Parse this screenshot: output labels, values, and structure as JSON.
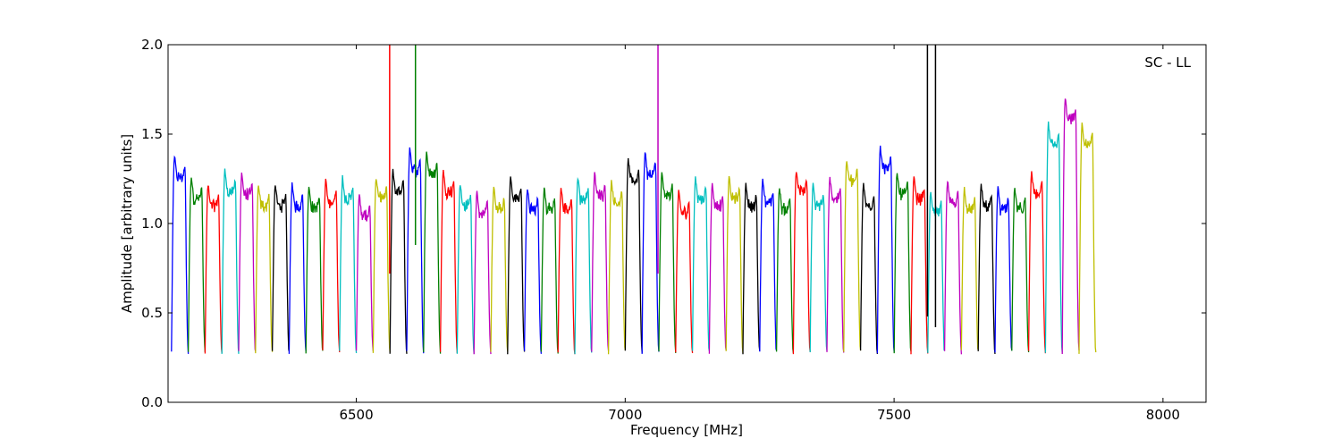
{
  "chart_data": {
    "type": "line",
    "annotation": "SC - LL",
    "xlabel": "Frequency [MHz]",
    "ylabel": "Amplitude [arbitrary units]",
    "xlim": [
      6150,
      8080
    ],
    "ylim": [
      0.0,
      2.0
    ],
    "x_ticks": [
      6500,
      7000,
      7500,
      8000
    ],
    "x_tick_labels": [
      "6500",
      "7000",
      "7500",
      "8000"
    ],
    "y_ticks": [
      0.0,
      0.5,
      1.0,
      1.5,
      2.0
    ],
    "y_tick_labels": [
      "0.0",
      "0.5",
      "1.0",
      "1.5",
      "2.0"
    ],
    "grid": false,
    "legend": "none",
    "color_cycle": [
      "#0000ff",
      "#008000",
      "#ff0000",
      "#00bfbf",
      "#bf00bf",
      "#bfbf00",
      "#000000"
    ],
    "channel_width_mhz": 31.25,
    "first_channel_center_mhz": 6172,
    "channel_peaks": [
      1.38,
      1.26,
      1.22,
      1.3,
      1.28,
      1.22,
      1.22,
      1.22,
      1.21,
      1.24,
      1.26,
      1.16,
      1.26,
      1.3,
      1.42,
      1.4,
      1.3,
      1.22,
      1.18,
      1.2,
      1.26,
      1.2,
      1.2,
      1.2,
      1.26,
      1.28,
      1.24,
      1.36,
      1.4,
      1.28,
      1.18,
      1.26,
      1.22,
      1.26,
      1.22,
      1.24,
      1.2,
      1.3,
      1.22,
      1.26,
      1.36,
      1.22,
      1.43,
      1.29,
      1.26,
      1.18,
      1.24,
      1.2,
      1.22,
      1.2,
      1.2,
      1.29,
      1.56,
      1.7,
      1.56
    ],
    "spikes": [
      {
        "x": 6562,
        "ymin": 0.72,
        "ymax": 2.0,
        "color": "#ff0000"
      },
      {
        "x": 6610,
        "ymin": 0.88,
        "ymax": 2.0,
        "color": "#008000"
      },
      {
        "x": 7061,
        "ymin": 0.72,
        "ymax": 2.0,
        "color": "#bf00bf"
      },
      {
        "x": 7562,
        "ymin": 0.48,
        "ymax": 2.0,
        "color": "#000000"
      },
      {
        "x": 7577,
        "ymin": 0.42,
        "ymax": 2.0,
        "color": "#000000"
      }
    ]
  }
}
